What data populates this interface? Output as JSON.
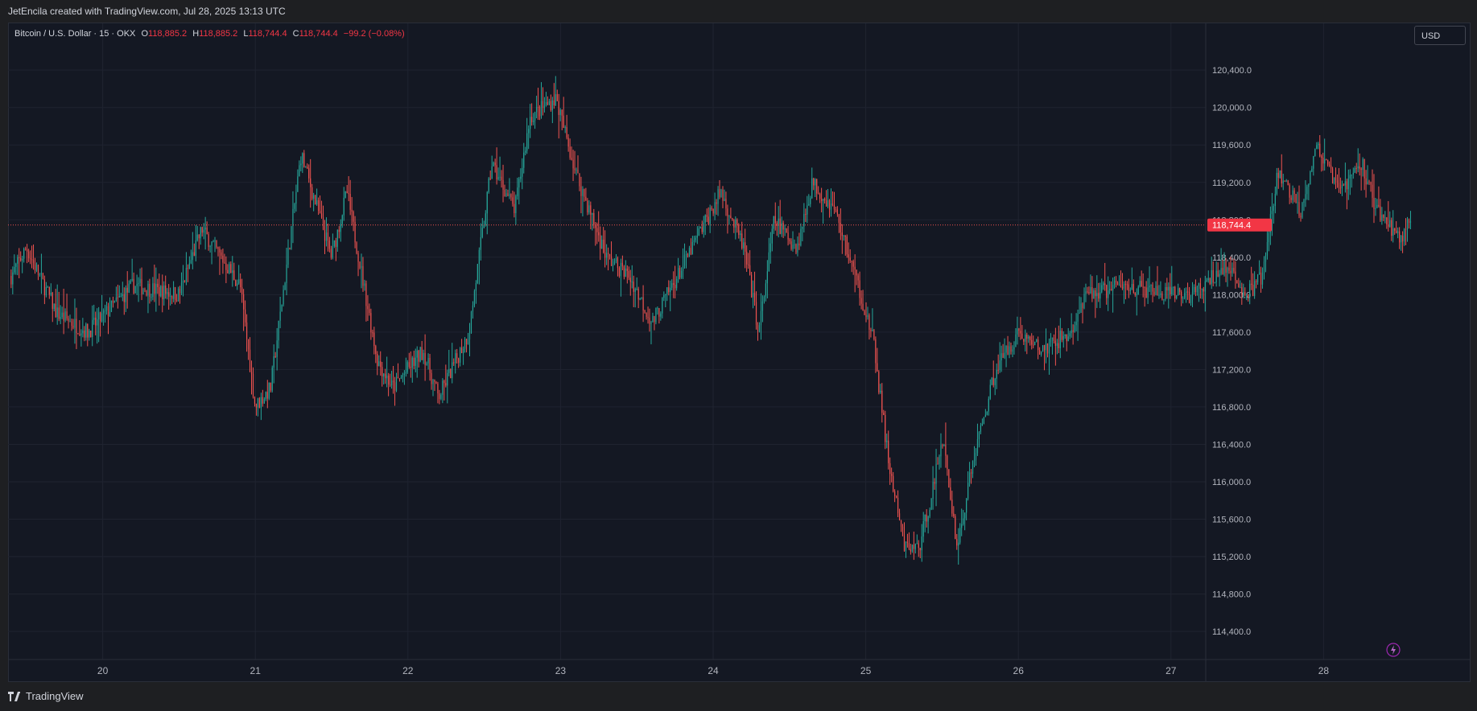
{
  "header": {
    "credit": "JetEncila created with TradingView.com, Jul 28, 2025 13:13 UTC"
  },
  "legend": {
    "symbol": "Bitcoin / U.S. Dollar · 15 · OKX",
    "o_label": "O",
    "o_value": "118,885.2",
    "h_label": "H",
    "h_value": "118,885.2",
    "l_label": "L",
    "l_value": "118,744.4",
    "c_label": "C",
    "c_value": "118,744.4",
    "change": "−99.2 (−0.08%)"
  },
  "currency": "USD",
  "footer": {
    "brand": "TradingView"
  },
  "colors": {
    "up": "#26a69a",
    "down": "#ef5350",
    "bg": "#141823",
    "grid": "#1f2330"
  },
  "chart_data": {
    "type": "candlestick",
    "title": "Bitcoin / U.S. Dollar · 15 · OKX",
    "ylim": [
      114100,
      120900
    ],
    "y_ticks": [
      "114,400.0",
      "114,800.0",
      "115,200.0",
      "115,600.0",
      "116,000.0",
      "116,400.0",
      "116,800.0",
      "117,200.0",
      "117,600.0",
      "118,000.0",
      "118,400.0",
      "118,800.0",
      "119,200.0",
      "119,600.0",
      "120,000.0",
      "120,400.0"
    ],
    "x_ticks": [
      "20",
      "21",
      "22",
      "23",
      "24",
      "25",
      "26",
      "27",
      "28"
    ],
    "last_price": 118744.4,
    "last_price_label": "118,744.4",
    "price_path": [
      {
        "x": 19.4,
        "y": 118200
      },
      {
        "x": 19.5,
        "y": 118500
      },
      {
        "x": 19.7,
        "y": 117800
      },
      {
        "x": 19.9,
        "y": 117600
      },
      {
        "x": 20.2,
        "y": 118100
      },
      {
        "x": 20.5,
        "y": 118000
      },
      {
        "x": 20.65,
        "y": 118700
      },
      {
        "x": 20.9,
        "y": 118100
      },
      {
        "x": 21.0,
        "y": 116800
      },
      {
        "x": 21.1,
        "y": 117000
      },
      {
        "x": 21.3,
        "y": 119500
      },
      {
        "x": 21.5,
        "y": 118400
      },
      {
        "x": 21.6,
        "y": 119100
      },
      {
        "x": 21.8,
        "y": 117300
      },
      {
        "x": 21.9,
        "y": 117000
      },
      {
        "x": 22.1,
        "y": 117400
      },
      {
        "x": 22.2,
        "y": 116900
      },
      {
        "x": 22.4,
        "y": 117600
      },
      {
        "x": 22.55,
        "y": 119400
      },
      {
        "x": 22.7,
        "y": 118900
      },
      {
        "x": 22.8,
        "y": 119900
      },
      {
        "x": 22.97,
        "y": 120100
      },
      {
        "x": 23.1,
        "y": 119300
      },
      {
        "x": 23.3,
        "y": 118400
      },
      {
        "x": 23.45,
        "y": 118200
      },
      {
        "x": 23.6,
        "y": 117700
      },
      {
        "x": 23.8,
        "y": 118300
      },
      {
        "x": 24.05,
        "y": 119100
      },
      {
        "x": 24.2,
        "y": 118500
      },
      {
        "x": 24.3,
        "y": 117600
      },
      {
        "x": 24.4,
        "y": 118800
      },
      {
        "x": 24.55,
        "y": 118500
      },
      {
        "x": 24.65,
        "y": 119200
      },
      {
        "x": 24.8,
        "y": 118900
      },
      {
        "x": 24.95,
        "y": 118100
      },
      {
        "x": 25.05,
        "y": 117500
      },
      {
        "x": 25.15,
        "y": 116200
      },
      {
        "x": 25.25,
        "y": 115300
      },
      {
        "x": 25.35,
        "y": 115300
      },
      {
        "x": 25.45,
        "y": 116000
      },
      {
        "x": 25.5,
        "y": 116500
      },
      {
        "x": 25.6,
        "y": 115300
      },
      {
        "x": 25.7,
        "y": 116200
      },
      {
        "x": 25.85,
        "y": 117200
      },
      {
        "x": 26.0,
        "y": 117600
      },
      {
        "x": 26.15,
        "y": 117400
      },
      {
        "x": 26.35,
        "y": 117600
      },
      {
        "x": 26.45,
        "y": 118000
      },
      {
        "x": 26.7,
        "y": 118100
      },
      {
        "x": 26.95,
        "y": 118000
      },
      {
        "x": 27.15,
        "y": 118000
      },
      {
        "x": 27.35,
        "y": 118300
      },
      {
        "x": 27.5,
        "y": 118000
      },
      {
        "x": 27.6,
        "y": 118200
      },
      {
        "x": 27.7,
        "y": 119300
      },
      {
        "x": 27.85,
        "y": 118900
      },
      {
        "x": 27.95,
        "y": 119600
      },
      {
        "x": 28.1,
        "y": 119100
      },
      {
        "x": 28.25,
        "y": 119400
      },
      {
        "x": 28.35,
        "y": 118900
      },
      {
        "x": 28.5,
        "y": 118600
      },
      {
        "x": 28.57,
        "y": 118800
      }
    ]
  }
}
